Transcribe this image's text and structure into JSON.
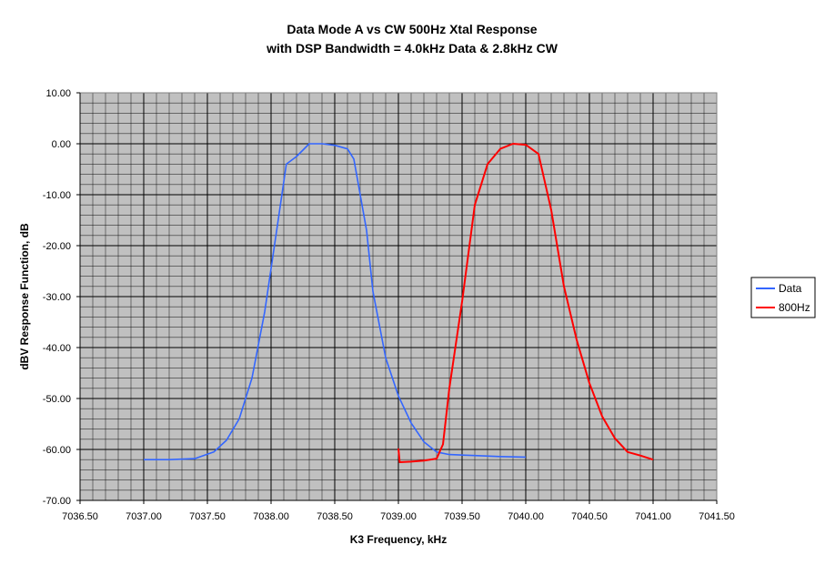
{
  "chart_data": {
    "type": "line",
    "title": [
      "Data Mode A vs CW 500Hz Xtal Response",
      "with DSP Bandwidth = 4.0kHz Data & 2.8kHz CW"
    ],
    "xlabel": "K3 Frequency, kHz",
    "ylabel": "dBV Response Function, dB",
    "xlim": [
      7036.5,
      7041.5
    ],
    "ylim": [
      -70,
      10
    ],
    "x_ticks": [
      7036.5,
      7037.0,
      7037.5,
      7038.0,
      7038.5,
      7039.0,
      7039.5,
      7040.0,
      7040.5,
      7041.0,
      7041.5
    ],
    "x_tick_labels": [
      "7036.50",
      "7037.00",
      "7037.50",
      "7038.00",
      "7038.50",
      "7039.00",
      "7039.50",
      "7040.00",
      "7040.50",
      "7041.00",
      "7041.50"
    ],
    "y_ticks": [
      10,
      0,
      -10,
      -20,
      -30,
      -40,
      -50,
      -60,
      -70
    ],
    "y_tick_labels": [
      "10.00",
      "0.00",
      "-10.00",
      "-20.00",
      "-30.00",
      "-40.00",
      "-50.00",
      "-60.00",
      "-70.00"
    ],
    "grid": true,
    "grid_minor": {
      "x_step": 0.1,
      "y_step": 2
    },
    "plot_background": "#c0c0c0",
    "legend_position": "right",
    "series": [
      {
        "name": "Data",
        "color": "#3366ff",
        "x": [
          7037.0,
          7037.2,
          7037.4,
          7037.55,
          7037.65,
          7037.75,
          7037.85,
          7037.95,
          7038.05,
          7038.12,
          7038.2,
          7038.3,
          7038.4,
          7038.5,
          7038.6,
          7038.65,
          7038.7,
          7038.75,
          7038.8,
          7038.9,
          7039.0,
          7039.1,
          7039.2,
          7039.3,
          7039.4,
          7039.6,
          7039.8,
          7040.0
        ],
        "y": [
          -62,
          -62,
          -61.8,
          -60.5,
          -58.2,
          -54,
          -46,
          -33,
          -16,
          -4,
          -2.5,
          0,
          0,
          -0.3,
          -1,
          -3,
          -10,
          -17,
          -29,
          -42,
          -49.5,
          -54.8,
          -58.5,
          -60.5,
          -61,
          -61.2,
          -61.4,
          -61.5
        ]
      },
      {
        "name": "800Hz",
        "color": "#ff0000",
        "x": [
          7039.0,
          7039.01,
          7039.1,
          7039.2,
          7039.3,
          7039.35,
          7039.4,
          7039.5,
          7039.6,
          7039.7,
          7039.8,
          7039.9,
          7040.0,
          7040.1,
          7040.2,
          7040.3,
          7040.4,
          7040.5,
          7040.6,
          7040.7,
          7040.8,
          7040.9,
          7041.0
        ],
        "y": [
          -59.8,
          -62.5,
          -62.4,
          -62.2,
          -61.8,
          -59,
          -48,
          -31,
          -12,
          -4,
          -1,
          0,
          -0.2,
          -2,
          -13,
          -28,
          -38.5,
          -47,
          -53.5,
          -57.8,
          -60.5,
          -61.2,
          -62
        ]
      }
    ]
  }
}
